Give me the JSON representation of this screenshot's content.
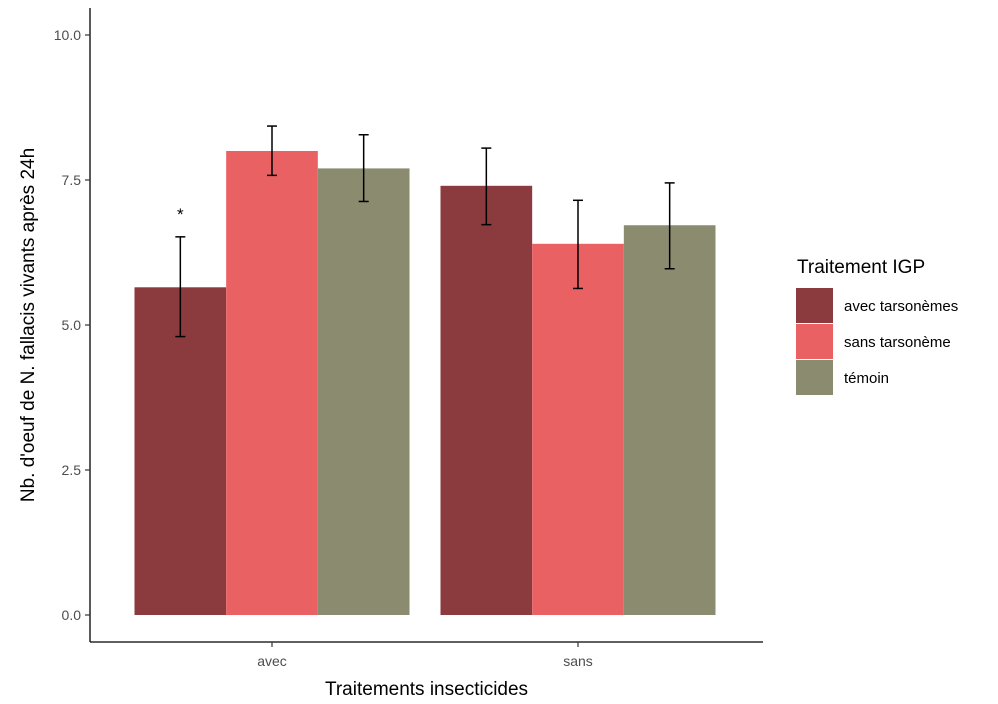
{
  "chart_data": {
    "type": "bar",
    "title": "",
    "xlabel": "Traitements insecticides",
    "ylabel": "Nb. d'oeuf de N. fallacis vivants après 24h",
    "categories": [
      "avec",
      "sans"
    ],
    "ylim": [
      0,
      10.4
    ],
    "yticks": [
      0.0,
      2.5,
      5.0,
      7.5,
      10.0
    ],
    "ytick_labels": [
      "0.0",
      "2.5",
      "5.0",
      "7.5",
      "10.0"
    ],
    "grid": false,
    "legend": {
      "title": "Traitement IGP",
      "position": "right"
    },
    "series": [
      {
        "name": "avec tarsonèmes",
        "color": "#8B3A3D",
        "values": [
          5.65,
          7.4
        ],
        "error_low": [
          4.8,
          6.73
        ],
        "error_high": [
          6.52,
          8.05
        ]
      },
      {
        "name": "sans tarsonème",
        "color": "#EA6164",
        "values": [
          8.0,
          6.4
        ],
        "error_low": [
          7.58,
          5.63
        ],
        "error_high": [
          8.43,
          7.15
        ]
      },
      {
        "name": "témoin",
        "color": "#8B8B6F",
        "values": [
          7.7,
          6.72
        ],
        "error_low": [
          7.13,
          5.97
        ],
        "error_high": [
          8.28,
          7.45
        ]
      }
    ],
    "annotations": [
      {
        "category": "avec",
        "series": "avec tarsonèmes",
        "text": "*"
      }
    ]
  }
}
